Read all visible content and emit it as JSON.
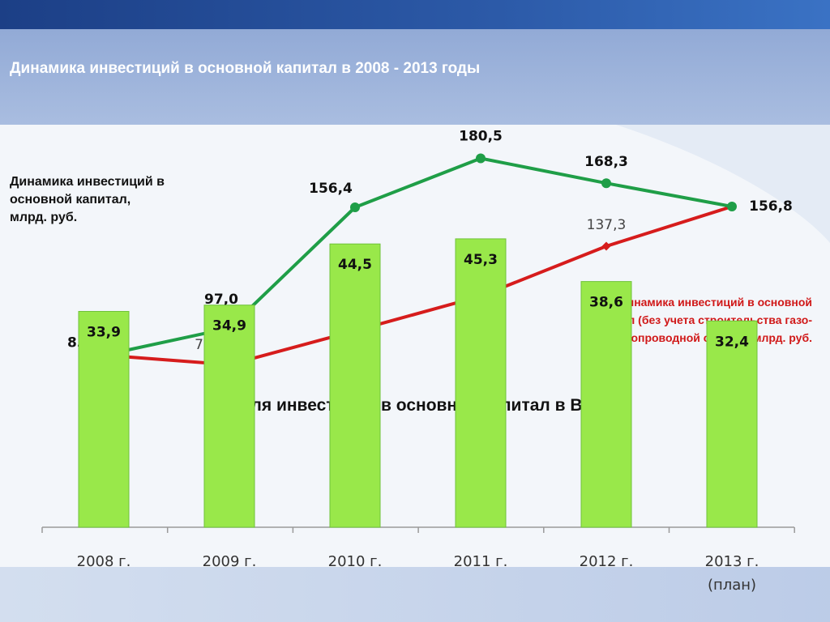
{
  "header": {
    "title": "Динамика инвестиций в основной капитал в 2008 - 2013 годы"
  },
  "line_legend": {
    "green": [
      "Динамика инвестиций в",
      "основной капитал,",
      "млрд. руб."
    ],
    "red": [
      "Динамика инвестиций в основной",
      "капитал (без учета строительства газо-",
      "и трубопроводной систем), млрд. руб."
    ]
  },
  "bar_title": "Доля инвестиций в основной капитал в ВРП, %",
  "colors": {
    "green_line": "#1f9e47",
    "red_line": "#d61c1c",
    "bar_fill": "#99e84a",
    "bar_stroke": "#6fc23a",
    "header_bg": "#9eb3d6",
    "title_text": "#ffffff"
  },
  "chart_data": [
    {
      "type": "line",
      "categories": [
        "2008 г.",
        "2009 г.",
        "2010 г.",
        "2011 г.",
        "2012 г.",
        "2013 г. (план)"
      ],
      "series": [
        {
          "name": "Динамика инвестиций в основной капитал, млрд. руб.",
          "values": [
            83.7,
            97.0,
            156.4,
            180.5,
            168.3,
            156.8
          ],
          "labels": [
            "83,7",
            "97,0",
            "156,4",
            "180,5",
            "168,3",
            "156,8"
          ],
          "color": "#1f9e47"
        },
        {
          "name": "Динамика инвестиций в основной капитал (без учета строительства газо- и трубопроводной систем), млрд. руб.",
          "values": [
            83.7,
            79.0,
            95.7,
            112.7,
            137.3,
            156.8
          ],
          "labels": [
            "",
            "79,0",
            "95,7",
            "112,7",
            "137,3",
            ""
          ],
          "color": "#d61c1c"
        }
      ]
    },
    {
      "type": "bar",
      "title": "Доля инвестиций в основной капитал в ВРП, %",
      "categories": [
        "2008 г.",
        "2009 г.",
        "2010 г.",
        "2011 г.",
        "2012 г.",
        "2013 г. (план)"
      ],
      "category_lines": [
        [
          "2008 г."
        ],
        [
          "2009 г."
        ],
        [
          "2010 г."
        ],
        [
          "2011 г."
        ],
        [
          "2012 г."
        ],
        [
          "2013 г.",
          "(план)"
        ]
      ],
      "values": [
        33.9,
        34.9,
        44.5,
        45.3,
        38.6,
        32.4
      ],
      "labels": [
        "33,9",
        "34,9",
        "44,5",
        "45,3",
        "38,6",
        "32,4"
      ]
    }
  ]
}
